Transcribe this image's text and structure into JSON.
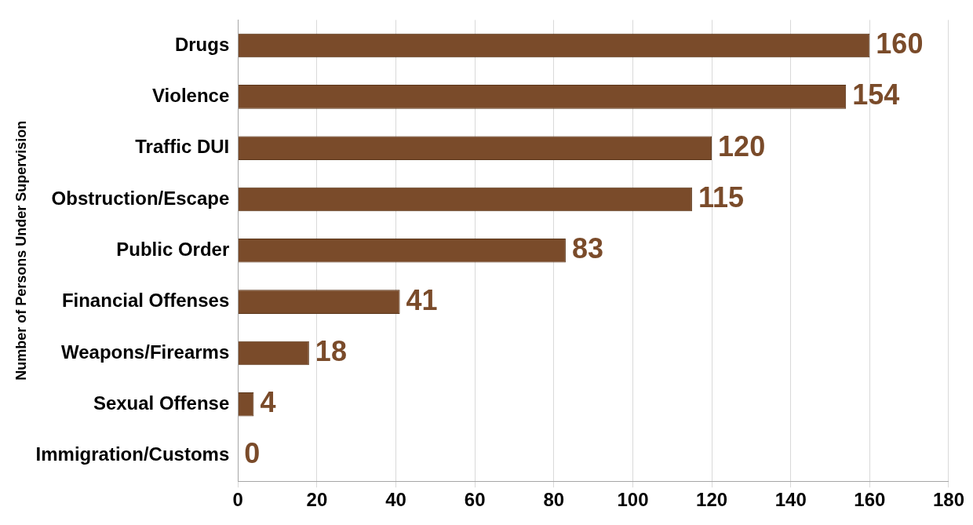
{
  "chart_data": {
    "type": "bar",
    "orientation": "horizontal",
    "ylabel": "Number of Persons Under Supervision",
    "categories": [
      "Drugs",
      "Violence",
      "Traffic DUI",
      "Obstruction/Escape",
      "Public Order",
      "Financial Offenses",
      "Weapons/Firearms",
      "Sexual Offense",
      "Immigration/Customs"
    ],
    "values": [
      160,
      154,
      120,
      115,
      83,
      41,
      18,
      4,
      0
    ],
    "color": "#7a4b2a",
    "xlim": [
      0,
      180
    ],
    "xticks": [
      0,
      20,
      40,
      60,
      80,
      100,
      120,
      140,
      160,
      180
    ],
    "grid": "x",
    "data_labels": true,
    "legend": false
  }
}
